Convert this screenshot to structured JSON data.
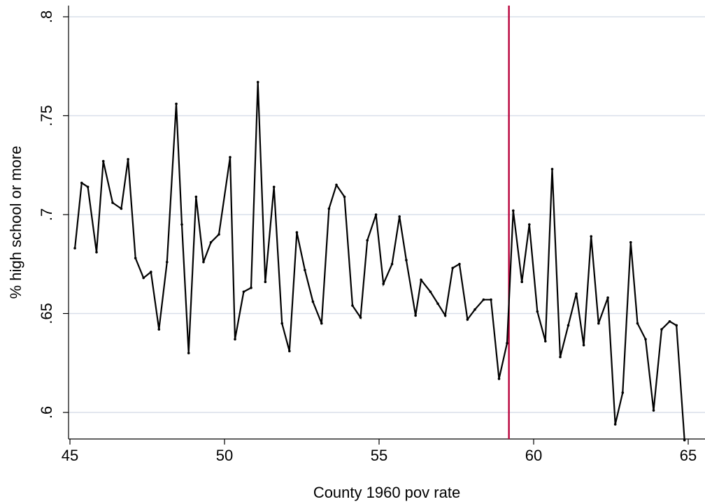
{
  "chart_data": {
    "type": "line",
    "title": "",
    "xlabel": "County 1960 pov rate",
    "ylabel": "% high school or more",
    "xlim": [
      45,
      65
    ],
    "ylim": [
      0.58,
      0.8
    ],
    "xticks": [
      45,
      50,
      55,
      60,
      65
    ],
    "xtick_labels": [
      "45",
      "50",
      "55",
      "60",
      "65"
    ],
    "yticks": [
      0.6,
      0.65,
      0.7,
      0.75,
      0.8
    ],
    "ytick_labels": [
      ".6",
      ".65",
      ".7",
      ".75",
      ".8"
    ],
    "grid": "horizontal",
    "cutoff_line": {
      "x": 59.2,
      "color": "#b8003a"
    },
    "colors": {
      "line": "#000000",
      "grid": "#d9dfea",
      "cutoff": "#b8003a"
    },
    "series": [
      {
        "x": [
          45.16,
          45.38,
          45.58,
          45.86,
          46.08,
          46.38,
          46.66,
          46.88,
          47.12,
          47.38,
          47.62,
          47.88,
          48.14,
          48.44,
          48.62,
          48.84,
          49.08,
          49.32,
          49.56,
          49.82,
          50.18,
          50.34,
          50.62,
          50.86,
          51.08,
          51.32,
          51.6,
          51.86,
          52.1,
          52.34,
          52.6,
          52.86,
          53.14,
          53.38,
          53.62,
          53.88,
          54.14,
          54.4,
          54.62,
          54.9,
          55.14,
          55.42,
          55.66,
          55.88,
          56.18,
          56.36,
          56.66,
          56.9,
          57.14,
          57.38,
          57.6,
          57.86,
          58.1,
          58.38,
          58.62,
          58.88,
          59.14,
          59.34,
          59.62,
          59.86,
          60.12,
          60.38,
          60.6,
          60.86,
          61.12,
          61.38,
          61.62,
          61.86,
          62.1,
          62.4,
          62.64,
          62.88,
          63.14,
          63.36,
          63.62,
          63.88,
          64.14,
          64.4,
          64.62,
          64.88
        ],
        "y": [
          0.683,
          0.716,
          0.714,
          0.681,
          0.727,
          0.706,
          0.703,
          0.728,
          0.678,
          0.668,
          0.671,
          0.642,
          0.676,
          0.756,
          0.695,
          0.63,
          0.709,
          0.676,
          0.686,
          0.69,
          0.729,
          0.637,
          0.661,
          0.663,
          0.767,
          0.666,
          0.714,
          0.645,
          0.631,
          0.691,
          0.672,
          0.656,
          0.645,
          0.703,
          0.715,
          0.709,
          0.654,
          0.648,
          0.687,
          0.7,
          0.665,
          0.675,
          0.699,
          0.677,
          0.649,
          0.667,
          0.661,
          0.655,
          0.649,
          0.673,
          0.675,
          0.647,
          0.652,
          0.657,
          0.657,
          0.617,
          0.635,
          0.702,
          0.666,
          0.695,
          0.651,
          0.636,
          0.723,
          0.628,
          0.644,
          0.66,
          0.634,
          0.689,
          0.645,
          0.658,
          0.594,
          0.61,
          0.686,
          0.645,
          0.637,
          0.601,
          0.642,
          0.646,
          0.644,
          0.586
        ]
      }
    ]
  }
}
